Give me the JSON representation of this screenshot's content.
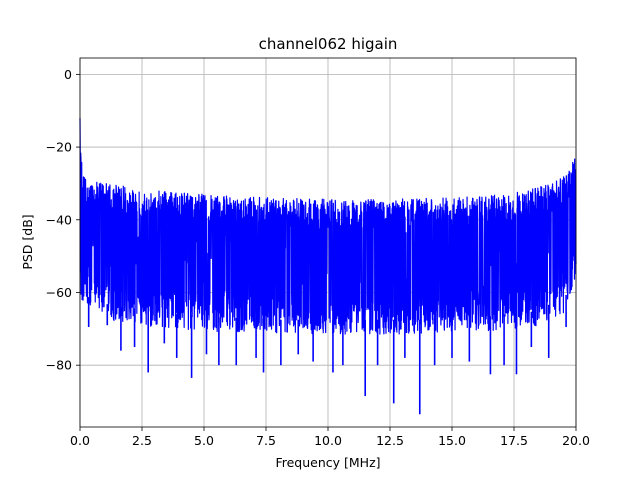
{
  "chart_data": {
    "type": "line",
    "title": "channel062 higain",
    "xlabel": "Frequency [MHz]",
    "ylabel": "PSD [dB]",
    "xlim": [
      0,
      20
    ],
    "ylim": [
      -97,
      4.5
    ],
    "xticks": [
      0,
      2.5,
      5,
      7.5,
      10,
      12.5,
      15,
      17.5,
      20
    ],
    "xtick_labels": [
      "0.0",
      "2.5",
      "5.0",
      "7.5",
      "10.0",
      "12.5",
      "15.0",
      "17.5",
      "20.0"
    ],
    "yticks": [
      0,
      -20,
      -40,
      -60,
      -80
    ],
    "ytick_labels": [
      "0",
      "−20",
      "−40",
      "−60",
      "−80"
    ],
    "grid": true,
    "series": [
      {
        "color": "#0000ff",
        "x": [
          0,
          0.05,
          0.1,
          0.2,
          0.3,
          0.5,
          1,
          1.5,
          2,
          2.5,
          3,
          4,
          5,
          6,
          7,
          8,
          9,
          10,
          11,
          12,
          12.5,
          13,
          13.7,
          14,
          15,
          16,
          16.6,
          17,
          17.5,
          18,
          18.5,
          19,
          19.5,
          19.8,
          20
        ],
        "upper": [
          -12,
          -22,
          -25,
          -28,
          -29,
          -29.5,
          -30,
          -30.5,
          -31,
          -31.5,
          -32,
          -32.5,
          -33,
          -33.5,
          -33.8,
          -34,
          -34.2,
          -34.3,
          -34.3,
          -34.2,
          -34.2,
          -34,
          -34,
          -34,
          -33.8,
          -33.5,
          -33.3,
          -33,
          -32.5,
          -32,
          -31,
          -30,
          -28,
          -25,
          -22.5
        ],
        "lower": [
          -60,
          -62,
          -64,
          -65,
          -65,
          -66,
          -67,
          -68,
          -68,
          -69,
          -69.5,
          -70,
          -70.5,
          -71,
          -71,
          -71.5,
          -71.5,
          -71.5,
          -71.5,
          -71.5,
          -71.5,
          -71.5,
          -71.5,
          -71,
          -71,
          -70.5,
          -70.5,
          -70,
          -70,
          -69.5,
          -69,
          -67,
          -66,
          -62,
          -55
        ],
        "mean": [
          -40,
          -43,
          -44,
          -45,
          -45.5,
          -46,
          -47,
          -47.5,
          -48,
          -48.5,
          -49,
          -49.5,
          -50,
          -50.5,
          -50.8,
          -51,
          -51.2,
          -51.3,
          -51.3,
          -51.2,
          -51.2,
          -51,
          -51,
          -51,
          -50.8,
          -50.5,
          -50.3,
          -50,
          -49.5,
          -49,
          -48.5,
          -47,
          -46,
          -44,
          -40
        ]
      }
    ],
    "deep_dips": [
      {
        "x": 0.35,
        "y": -69.5
      },
      {
        "x": 1.1,
        "y": -69
      },
      {
        "x": 1.65,
        "y": -76
      },
      {
        "x": 2.2,
        "y": -75
      },
      {
        "x": 2.75,
        "y": -82
      },
      {
        "x": 3.4,
        "y": -74
      },
      {
        "x": 3.9,
        "y": -78
      },
      {
        "x": 4.5,
        "y": -83.5
      },
      {
        "x": 5.1,
        "y": -77
      },
      {
        "x": 5.6,
        "y": -80
      },
      {
        "x": 6.3,
        "y": -80
      },
      {
        "x": 7.1,
        "y": -78
      },
      {
        "x": 7.4,
        "y": -82
      },
      {
        "x": 8.1,
        "y": -80
      },
      {
        "x": 8.8,
        "y": -77
      },
      {
        "x": 9.4,
        "y": -79
      },
      {
        "x": 10.2,
        "y": -82
      },
      {
        "x": 10.6,
        "y": -80
      },
      {
        "x": 11.5,
        "y": -88.5
      },
      {
        "x": 12.0,
        "y": -80
      },
      {
        "x": 12.65,
        "y": -90.5
      },
      {
        "x": 13.1,
        "y": -78
      },
      {
        "x": 13.7,
        "y": -93.5
      },
      {
        "x": 14.3,
        "y": -80
      },
      {
        "x": 15.0,
        "y": -78
      },
      {
        "x": 15.7,
        "y": -79
      },
      {
        "x": 16.55,
        "y": -82.5
      },
      {
        "x": 17.1,
        "y": -80
      },
      {
        "x": 17.6,
        "y": -82.5
      },
      {
        "x": 18.2,
        "y": -75
      },
      {
        "x": 18.9,
        "y": -78
      },
      {
        "x": 19.6,
        "y": -69.5
      }
    ]
  }
}
